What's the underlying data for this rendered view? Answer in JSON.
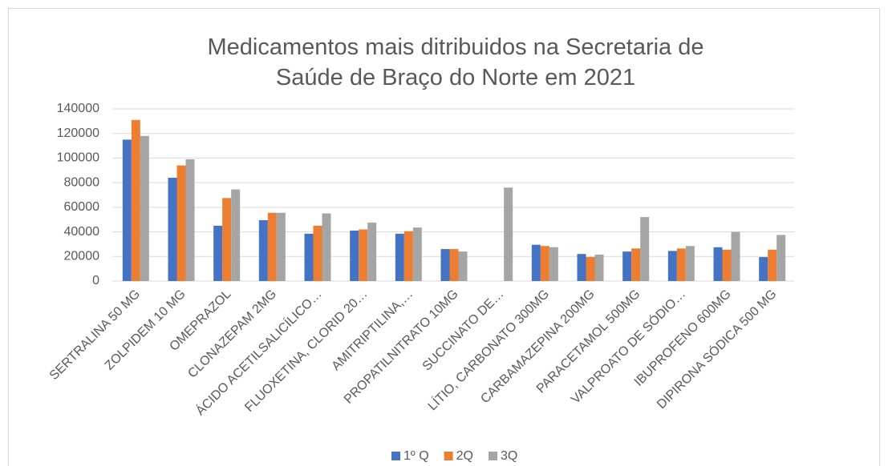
{
  "chart_data": {
    "type": "bar",
    "title": "Medicamentos mais ditribuidos na Secretaria de Saúde de Braço do Norte em 2021",
    "categories": [
      "SERTRALINA 50 MG",
      "ZOLPIDEM 10 MG",
      "OMEPRAZOL",
      "CLONAZEPAM 2MG",
      "ÁCIDO ACETILSALICÍLICO…",
      "FLUOXETINA, CLORID 20…",
      "AMITRIPTILINA,…",
      "PROPATILNITRATO 10MG",
      "SUCCINATO DE…",
      "LÍTIO, CARBONATO 300MG",
      "CARBAMAZEPINA 200MG",
      "PARACETAMOL 500MG",
      "VALPROATO DE SÓDIO…",
      "IBUPROFENO 600MG",
      "DIPIRONA SÓDICA 500 MG"
    ],
    "series": [
      {
        "name": "1º Q",
        "color": "#4472c4",
        "values": [
          115000,
          84000,
          45000,
          49500,
          38500,
          41000,
          38500,
          26000,
          null,
          29500,
          22000,
          24000,
          24500,
          27500,
          19500
        ]
      },
      {
        "name": "2Q",
        "color": "#ed7d31",
        "values": [
          131000,
          94000,
          67500,
          55500,
          45000,
          42000,
          40500,
          26000,
          null,
          28500,
          19500,
          26500,
          26500,
          25500,
          25500
        ]
      },
      {
        "name": "3Q",
        "color": "#a5a5a5",
        "values": [
          118000,
          99000,
          74500,
          55500,
          55000,
          47500,
          43500,
          24000,
          76000,
          27500,
          21500,
          52000,
          28500,
          40000,
          37500
        ]
      }
    ],
    "ylim": [
      0,
      140000
    ],
    "yticks": [
      0,
      20000,
      40000,
      60000,
      80000,
      100000,
      120000,
      140000
    ],
    "grid": true,
    "legend": "bottom"
  }
}
